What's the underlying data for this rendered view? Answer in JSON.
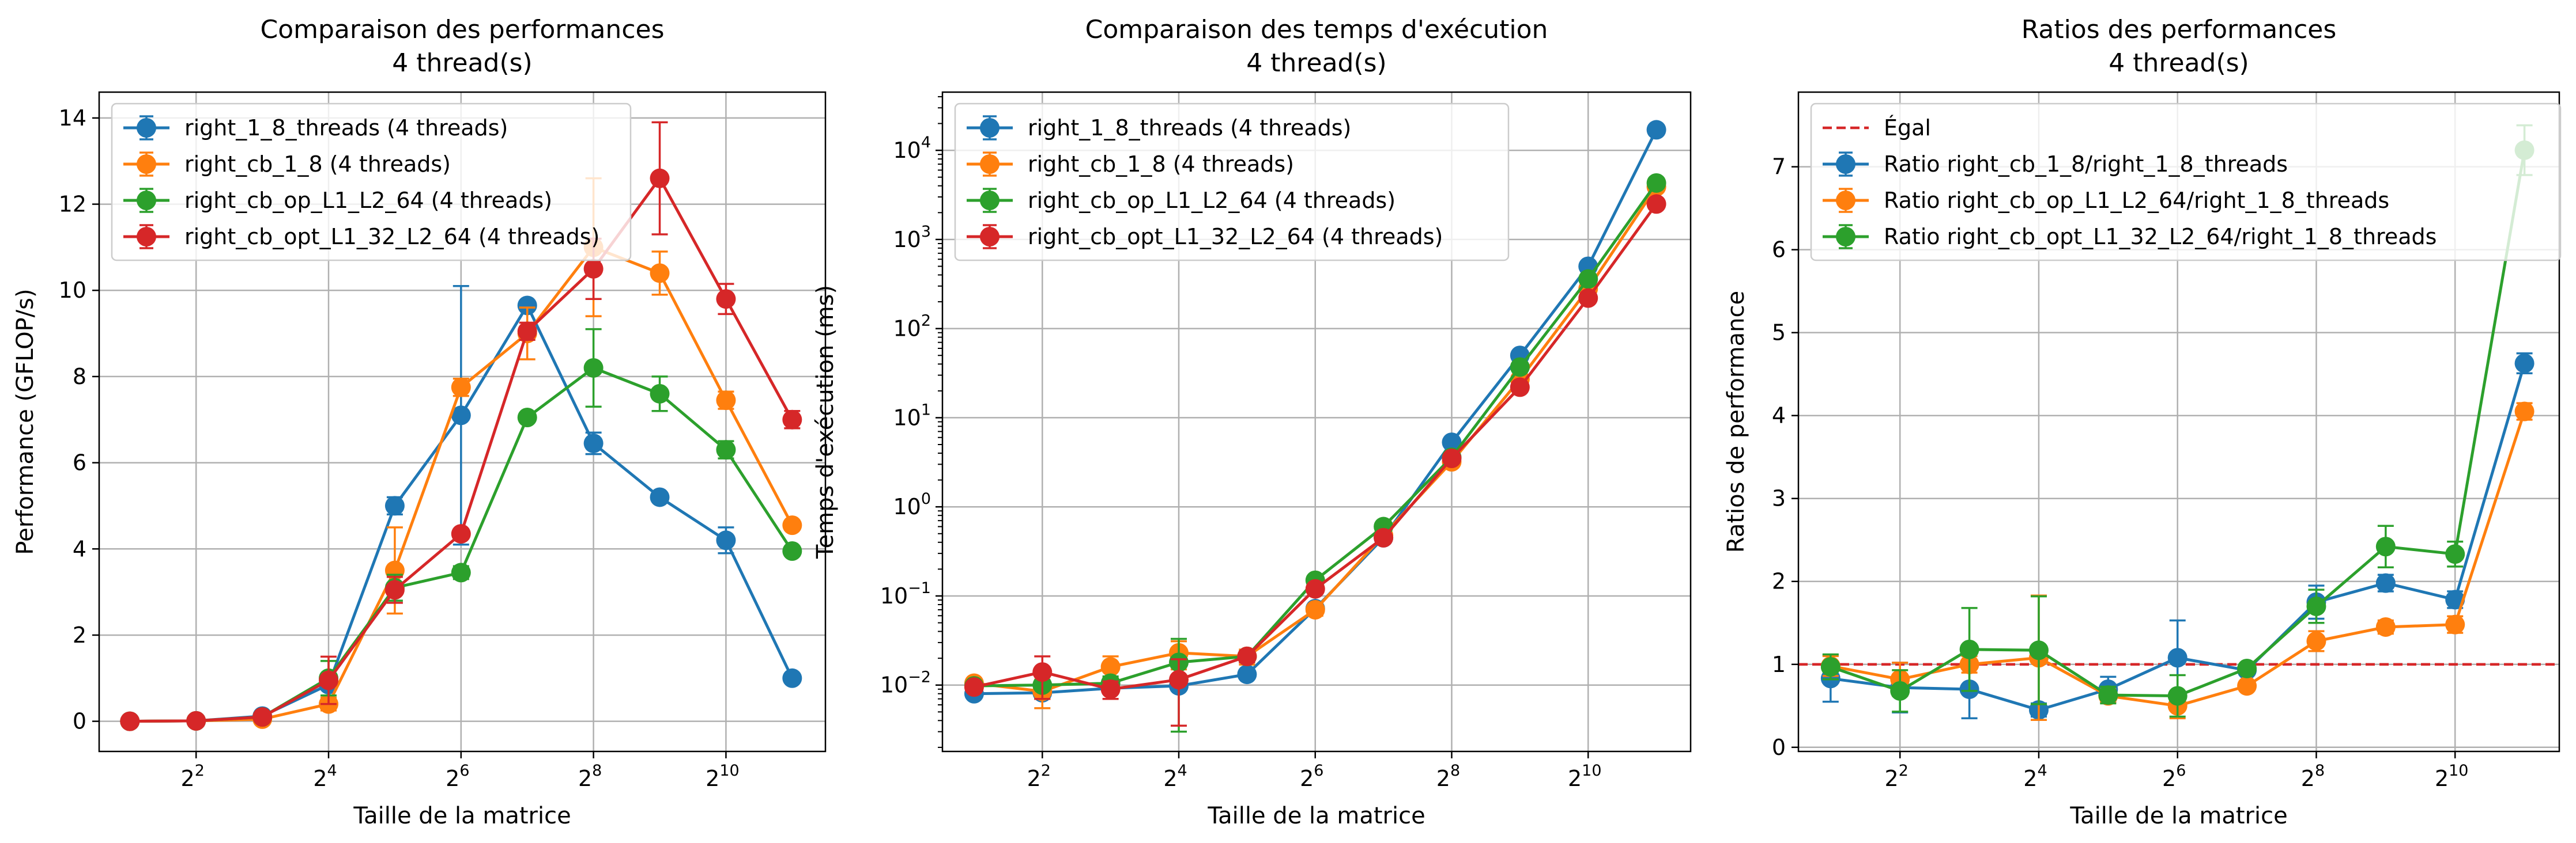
{
  "colors": {
    "blue": "#1f77b4",
    "orange": "#ff7f0e",
    "green": "#2ca02c",
    "red": "#d62728",
    "grid": "#b0b0b0"
  },
  "chart_data": [
    {
      "type": "line",
      "title": "Comparaison des performances",
      "subtitle": "4 thread(s)",
      "xlabel": "Taille de la matrice",
      "ylabel": "Performance (GFLOP/s)",
      "xscale": "log2",
      "xlim": [
        1.45,
        2900
      ],
      "ylim": [
        -0.7,
        14.6
      ],
      "yticks": [
        0,
        2,
        4,
        6,
        8,
        10,
        12,
        14
      ],
      "yticklabels": [
        "0",
        "2",
        "4",
        "6",
        "8",
        "10",
        "12",
        "14"
      ],
      "xticks": [
        4,
        16,
        64,
        256,
        1024
      ],
      "xtick_base": "2",
      "xtick_exps": [
        "2",
        "4",
        "6",
        "8",
        "10"
      ],
      "grid": true,
      "legend_position": "upper-left",
      "x": [
        2,
        4,
        8,
        16,
        32,
        64,
        128,
        256,
        512,
        1024,
        2048
      ],
      "series": [
        {
          "name": "right_1_8_threads (4 threads)",
          "color": "blue",
          "values": [
            0.0,
            0.01,
            0.12,
            0.85,
            5.0,
            7.1,
            9.65,
            6.45,
            5.2,
            4.2,
            1.0
          ],
          "errors": [
            0.0,
            0.0,
            0.05,
            0.1,
            0.2,
            3.0,
            0.1,
            0.25,
            0.1,
            0.3,
            0.1
          ]
        },
        {
          "name": "right_cb_1_8 (4 threads)",
          "color": "orange",
          "values": [
            0.0,
            0.01,
            0.05,
            0.4,
            3.5,
            7.75,
            9.0,
            11.0,
            10.4,
            7.45,
            4.55
          ],
          "errors": [
            0.0,
            0.0,
            0.05,
            0.15,
            1.0,
            0.2,
            0.6,
            1.6,
            0.5,
            0.2,
            0.1
          ]
        },
        {
          "name": "right_cb_op_L1_L2_64 (4 threads)",
          "color": "green",
          "values": [
            0.0,
            0.01,
            0.1,
            1.0,
            3.1,
            3.45,
            7.05,
            8.2,
            7.6,
            6.3,
            3.95
          ],
          "errors": [
            0.0,
            0.0,
            0.03,
            0.4,
            0.3,
            0.15,
            0.1,
            0.9,
            0.4,
            0.2,
            0.1
          ]
        },
        {
          "name": "right_cb_opt_L1_32_L2_64 (4 threads)",
          "color": "red",
          "values": [
            0.0,
            0.01,
            0.1,
            0.95,
            3.05,
            4.35,
            9.05,
            10.5,
            12.6,
            9.8,
            7.0
          ],
          "errors": [
            0.0,
            0.0,
            0.03,
            0.55,
            0.3,
            0.1,
            0.2,
            0.7,
            1.3,
            0.35,
            0.2
          ]
        }
      ]
    },
    {
      "type": "line",
      "title": "Comparaison des temps d'exécution",
      "subtitle": "4 thread(s)",
      "xlabel": "Taille de la matrice",
      "ylabel": "Temps d'exécution (ms)",
      "xscale": "log2",
      "yscale": "log10",
      "xlim": [
        1.45,
        2900
      ],
      "ylim": [
        0.0018,
        45000
      ],
      "yticks": [
        0.01,
        0.1,
        1,
        10,
        100,
        1000,
        10000
      ],
      "ytick_base": "10",
      "ytick_exps": [
        "−2",
        "−1",
        "0",
        "1",
        "2",
        "3",
        "4"
      ],
      "xticks": [
        4,
        16,
        64,
        256,
        1024
      ],
      "xtick_base": "2",
      "xtick_exps": [
        "2",
        "4",
        "6",
        "8",
        "10"
      ],
      "grid": true,
      "legend_position": "upper-left",
      "x": [
        2,
        4,
        8,
        16,
        32,
        64,
        128,
        256,
        512,
        1024,
        2048
      ],
      "series": [
        {
          "name": "right_1_8_threads (4 threads)",
          "color": "blue",
          "values": [
            0.008,
            0.0082,
            0.0092,
            0.0098,
            0.0132,
            0.072,
            0.45,
            5.3,
            50,
            500,
            17000
          ],
          "errors": [
            0.0005,
            0.0005,
            0.001,
            0.001,
            0.001,
            0.005,
            0.02,
            0.3,
            3,
            40,
            800
          ]
        },
        {
          "name": "right_cb_1_8 (4 threads)",
          "color": "orange",
          "values": [
            0.0105,
            0.0085,
            0.016,
            0.023,
            0.021,
            0.07,
            0.48,
            3.2,
            27,
            280,
            3900
          ],
          "errors": [
            0.0008,
            0.003,
            0.005,
            0.008,
            0.004,
            0.01,
            0.02,
            0.2,
            2,
            15,
            200
          ]
        },
        {
          "name": "right_cb_op_L1_L2_64 (4 threads)",
          "color": "green",
          "values": [
            0.0098,
            0.01,
            0.0105,
            0.018,
            0.021,
            0.15,
            0.6,
            3.6,
            37,
            360,
            4300
          ],
          "errors": [
            0.001,
            0.003,
            0.002,
            0.015,
            0.003,
            0.01,
            0.03,
            0.2,
            2,
            20,
            200
          ]
        },
        {
          "name": "right_cb_opt_L1_32_L2_64 (4 threads)",
          "color": "red",
          "values": [
            0.0095,
            0.014,
            0.009,
            0.0115,
            0.021,
            0.12,
            0.45,
            3.5,
            22,
            220,
            2500
          ],
          "errors": [
            0.001,
            0.007,
            0.002,
            0.008,
            0.003,
            0.01,
            0.02,
            0.2,
            2,
            15,
            150
          ]
        }
      ]
    },
    {
      "type": "line",
      "title": "Ratios des performances",
      "subtitle": "4 thread(s)",
      "xlabel": "Taille de la matrice",
      "ylabel": "Ratios de performance",
      "xscale": "log2",
      "xlim": [
        1.45,
        2900
      ],
      "ylim": [
        -0.05,
        7.9
      ],
      "yticks": [
        0,
        1,
        2,
        3,
        4,
        5,
        6,
        7
      ],
      "yticklabels": [
        "0",
        "1",
        "2",
        "3",
        "4",
        "5",
        "6",
        "7"
      ],
      "xticks": [
        4,
        16,
        64,
        256,
        1024
      ],
      "xtick_base": "2",
      "xtick_exps": [
        "2",
        "4",
        "6",
        "8",
        "10"
      ],
      "grid": true,
      "legend_position": "upper-left",
      "reference_line": {
        "name": "Égal",
        "value": 1,
        "color": "red"
      },
      "x": [
        2,
        4,
        8,
        16,
        32,
        64,
        128,
        256,
        512,
        1024,
        2048
      ],
      "series": [
        {
          "name": "Ratio right_cb_1_8/right_1_8_threads",
          "color": "blue",
          "values": [
            0.83,
            0.72,
            0.7,
            0.45,
            0.7,
            1.08,
            0.93,
            1.75,
            1.98,
            1.78,
            4.63
          ],
          "errors": [
            0.28,
            0.3,
            0.35,
            0.08,
            0.15,
            0.45,
            0.05,
            0.2,
            0.1,
            0.1,
            0.12
          ]
        },
        {
          "name": "Ratio right_cb_op_L1_L2_64/right_1_8_threads",
          "color": "orange",
          "values": [
            0.98,
            0.82,
            1.0,
            1.08,
            0.62,
            0.5,
            0.74,
            1.28,
            1.45,
            1.48,
            4.05
          ],
          "errors": [
            0.12,
            0.2,
            0.1,
            0.75,
            0.08,
            0.15,
            0.05,
            0.12,
            0.08,
            0.1,
            0.1
          ]
        },
        {
          "name": "Ratio right_cb_opt_L1_32_L2_64/right_1_8_threads",
          "color": "green",
          "values": [
            0.97,
            0.68,
            1.18,
            1.17,
            0.63,
            0.62,
            0.95,
            1.7,
            2.42,
            2.33,
            7.2
          ],
          "errors": [
            0.15,
            0.25,
            0.5,
            0.65,
            0.1,
            0.25,
            0.05,
            0.2,
            0.25,
            0.15,
            0.3
          ]
        }
      ]
    }
  ]
}
